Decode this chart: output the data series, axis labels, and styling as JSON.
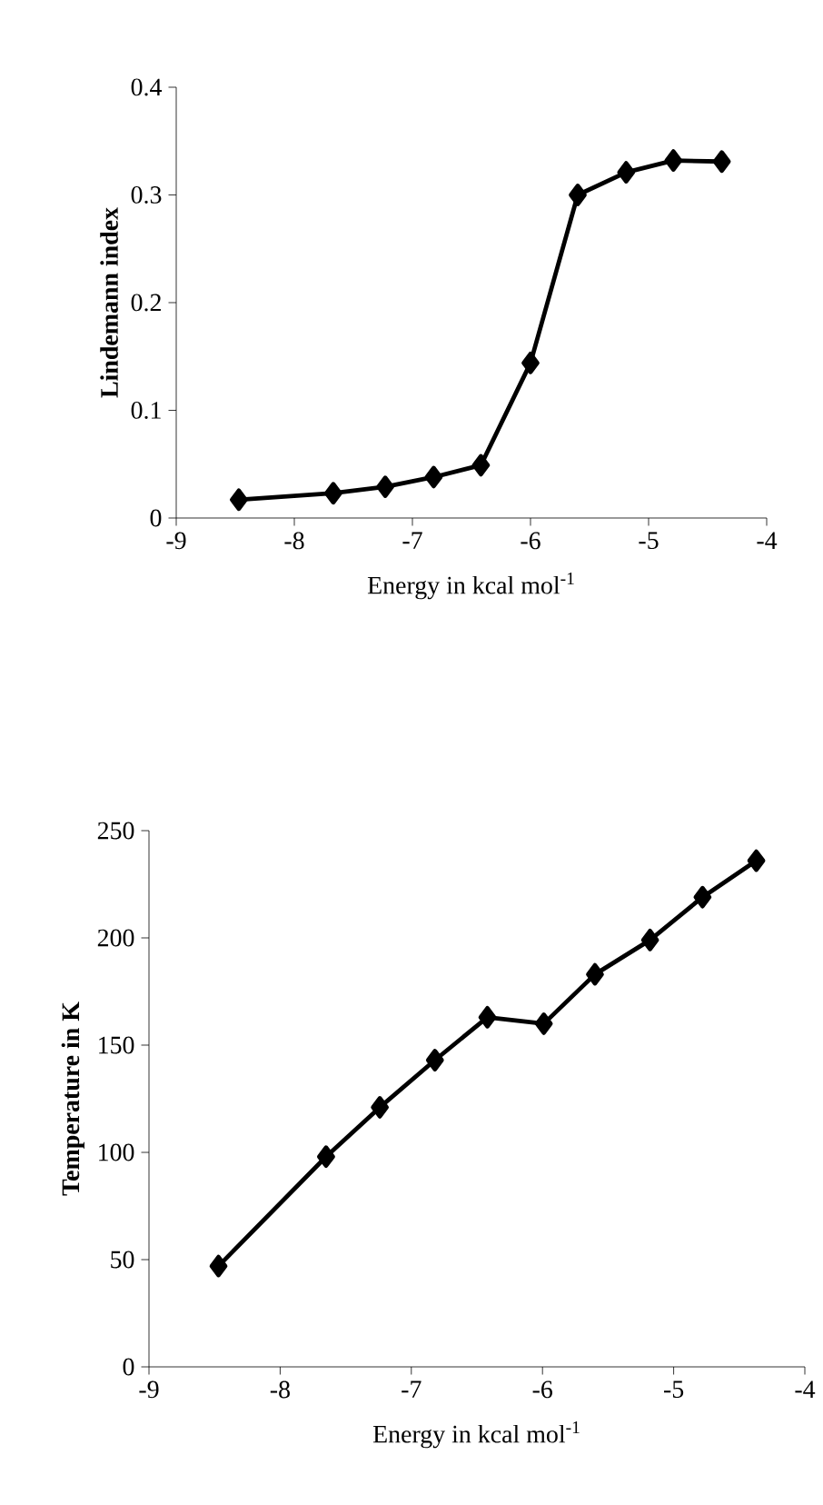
{
  "chart_data": [
    {
      "type": "line",
      "xlabel": "Energy in kcal mol$^{-1}$",
      "ylabel": "Lindemann index",
      "xlim": [
        -9,
        -4
      ],
      "ylim": [
        0,
        0.4
      ],
      "xticks": [
        -9,
        -8,
        -7,
        -6,
        -5,
        -4
      ],
      "yticks": [
        0,
        0.1,
        0.2,
        0.3,
        0.4
      ],
      "marker": "diamond",
      "line_style": "solid",
      "series": [
        {
          "color": "#000000",
          "x": [
            -8.47,
            -7.67,
            -7.23,
            -6.82,
            -6.42,
            -6.0,
            -5.6,
            -5.19,
            -4.79,
            -4.38
          ],
          "values": [
            0.017,
            0.023,
            0.029,
            0.038,
            0.049,
            0.144,
            0.3,
            0.321,
            0.332,
            0.331
          ]
        }
      ]
    },
    {
      "type": "line",
      "xlabel": "Energy in kcal mol$^{-1}$",
      "ylabel": "Temperature in K",
      "xlim": [
        -9,
        -4
      ],
      "ylim": [
        0,
        250
      ],
      "xticks": [
        -9,
        -8,
        -7,
        -6,
        -5,
        -4
      ],
      "yticks": [
        0,
        50,
        100,
        150,
        200,
        250
      ],
      "marker": "diamond",
      "line_style": "solid",
      "series": [
        {
          "color": "#000000",
          "x": [
            -8.47,
            -7.65,
            -7.24,
            -6.82,
            -6.42,
            -5.99,
            -5.6,
            -5.18,
            -4.78,
            -4.37
          ],
          "values": [
            47,
            98,
            121,
            143,
            163,
            160,
            183,
            199,
            219,
            236
          ]
        }
      ]
    }
  ]
}
